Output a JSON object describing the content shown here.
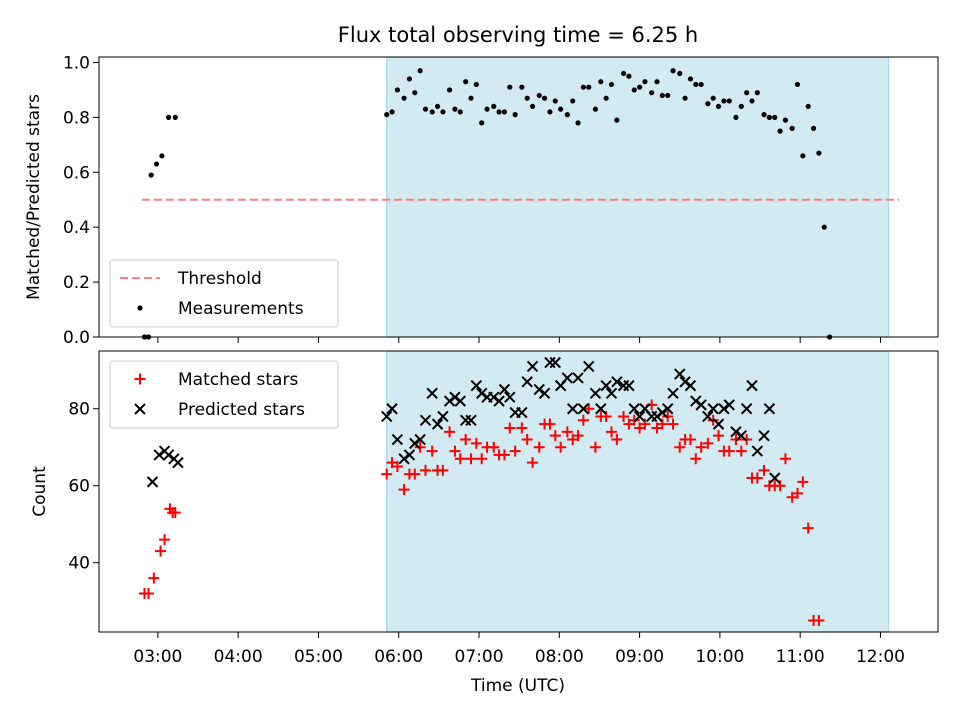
{
  "title": "Flux total observing time = 6.25 h",
  "xlabel": "Time (UTC)",
  "x_ticks": [
    "03:00",
    "04:00",
    "05:00",
    "06:00",
    "07:00",
    "08:00",
    "09:00",
    "10:00",
    "11:00",
    "12:00"
  ],
  "shaded_interval": {
    "start": "05:51",
    "end": "12:06",
    "color": "#add8e6"
  },
  "chart_data": [
    {
      "type": "scatter",
      "ylabel": "Matched/Predicted stars",
      "xlim": [
        "02:16",
        "12:43"
      ],
      "ylim": [
        0,
        1.02
      ],
      "y_ticks": [
        "0.0",
        "0.2",
        "0.4",
        "0.6",
        "0.8",
        "1.0"
      ],
      "legend_position": "lower-left",
      "threshold": {
        "name": "Threshold",
        "value": 0.5,
        "x_start": "02:48",
        "x_end": "12:14",
        "color": "#ff7f7f",
        "style": "dashed"
      },
      "series": [
        {
          "name": "Measurements",
          "color": "#000000",
          "marker": "dot",
          "points": [
            [
              "02:50",
              0.0
            ],
            [
              "02:53",
              0.0
            ],
            [
              "02:55",
              0.59
            ],
            [
              "02:59",
              0.63
            ],
            [
              "03:03",
              0.66
            ],
            [
              "03:08",
              0.8
            ],
            [
              "03:13",
              0.8
            ],
            [
              "05:51",
              0.81
            ],
            [
              "05:55",
              0.82
            ],
            [
              "05:59",
              0.9
            ],
            [
              "06:04",
              0.87
            ],
            [
              "06:08",
              0.94
            ],
            [
              "06:12",
              0.89
            ],
            [
              "06:16",
              0.97
            ],
            [
              "06:20",
              0.83
            ],
            [
              "06:25",
              0.82
            ],
            [
              "06:29",
              0.84
            ],
            [
              "06:33",
              0.82
            ],
            [
              "06:38",
              0.9
            ],
            [
              "06:42",
              0.83
            ],
            [
              "06:46",
              0.82
            ],
            [
              "06:50",
              0.93
            ],
            [
              "06:54",
              0.87
            ],
            [
              "06:58",
              0.92
            ],
            [
              "07:02",
              0.78
            ],
            [
              "07:06",
              0.83
            ],
            [
              "07:11",
              0.84
            ],
            [
              "07:15",
              0.82
            ],
            [
              "07:19",
              0.82
            ],
            [
              "07:23",
              0.91
            ],
            [
              "07:27",
              0.81
            ],
            [
              "07:32",
              0.91
            ],
            [
              "07:36",
              0.87
            ],
            [
              "07:40",
              0.84
            ],
            [
              "07:45",
              0.88
            ],
            [
              "07:49",
              0.87
            ],
            [
              "07:53",
              0.82
            ],
            [
              "07:57",
              0.86
            ],
            [
              "08:01",
              0.83
            ],
            [
              "08:06",
              0.81
            ],
            [
              "08:10",
              0.86
            ],
            [
              "08:14",
              0.78
            ],
            [
              "08:18",
              0.91
            ],
            [
              "08:22",
              0.91
            ],
            [
              "08:27",
              0.83
            ],
            [
              "08:31",
              0.93
            ],
            [
              "08:35",
              0.87
            ],
            [
              "08:39",
              0.92
            ],
            [
              "08:43",
              0.79
            ],
            [
              "08:48",
              0.96
            ],
            [
              "08:52",
              0.95
            ],
            [
              "08:56",
              0.9
            ],
            [
              "09:00",
              0.91
            ],
            [
              "09:04",
              0.93
            ],
            [
              "09:09",
              0.89
            ],
            [
              "09:13",
              0.93
            ],
            [
              "09:17",
              0.88
            ],
            [
              "09:21",
              0.88
            ],
            [
              "09:25",
              0.97
            ],
            [
              "09:30",
              0.96
            ],
            [
              "09:34",
              0.87
            ],
            [
              "09:38",
              0.94
            ],
            [
              "09:42",
              0.92
            ],
            [
              "09:46",
              0.92
            ],
            [
              "09:51",
              0.85
            ],
            [
              "09:55",
              0.87
            ],
            [
              "09:59",
              0.84
            ],
            [
              "10:03",
              0.86
            ],
            [
              "10:07",
              0.86
            ],
            [
              "10:12",
              0.8
            ],
            [
              "10:16",
              0.84
            ],
            [
              "10:20",
              0.89
            ],
            [
              "10:24",
              0.86
            ],
            [
              "10:28",
              0.89
            ],
            [
              "10:33",
              0.81
            ],
            [
              "10:37",
              0.8
            ],
            [
              "10:41",
              0.8
            ],
            [
              "10:45",
              0.75
            ],
            [
              "10:49",
              0.79
            ],
            [
              "10:54",
              0.76
            ],
            [
              "10:58",
              0.92
            ],
            [
              "11:02",
              0.66
            ],
            [
              "11:06",
              0.84
            ],
            [
              "11:10",
              0.76
            ],
            [
              "11:14",
              0.67
            ],
            [
              "11:18",
              0.4
            ],
            [
              "11:22",
              0.0
            ]
          ]
        }
      ]
    },
    {
      "type": "scatter",
      "ylabel": "Count",
      "xlim": [
        "02:16",
        "12:43"
      ],
      "ylim": [
        22,
        95
      ],
      "y_ticks": [
        "40",
        "60",
        "80"
      ],
      "legend_position": "top-left",
      "series": [
        {
          "name": "Matched stars",
          "color": "#ff0000",
          "marker": "plus",
          "points": [
            [
              "02:50",
              32
            ],
            [
              "02:53",
              32
            ],
            [
              "02:57",
              36
            ],
            [
              "03:02",
              43
            ],
            [
              "03:05",
              46
            ],
            [
              "03:09",
              54
            ],
            [
              "03:11",
              53
            ],
            [
              "03:13",
              53
            ],
            [
              "05:51",
              63
            ],
            [
              "05:55",
              66
            ],
            [
              "05:59",
              65
            ],
            [
              "06:04",
              59
            ],
            [
              "06:08",
              63
            ],
            [
              "06:12",
              63
            ],
            [
              "06:16",
              70
            ],
            [
              "06:20",
              64
            ],
            [
              "06:25",
              69
            ],
            [
              "06:29",
              64
            ],
            [
              "06:33",
              64
            ],
            [
              "06:38",
              74
            ],
            [
              "06:42",
              69
            ],
            [
              "06:46",
              67
            ],
            [
              "06:50",
              72
            ],
            [
              "06:54",
              67
            ],
            [
              "06:58",
              71
            ],
            [
              "07:02",
              67
            ],
            [
              "07:06",
              70
            ],
            [
              "07:11",
              70
            ],
            [
              "07:15",
              68
            ],
            [
              "07:19",
              68
            ],
            [
              "07:23",
              75
            ],
            [
              "07:27",
              69
            ],
            [
              "07:32",
              75
            ],
            [
              "07:36",
              72
            ],
            [
              "07:40",
              66
            ],
            [
              "07:45",
              70
            ],
            [
              "07:49",
              76
            ],
            [
              "07:53",
              76
            ],
            [
              "07:57",
              73
            ],
            [
              "08:01",
              70
            ],
            [
              "08:06",
              74
            ],
            [
              "08:10",
              72
            ],
            [
              "08:14",
              73
            ],
            [
              "08:18",
              77
            ],
            [
              "08:22",
              80
            ],
            [
              "08:27",
              70
            ],
            [
              "08:31",
              78
            ],
            [
              "08:35",
              78
            ],
            [
              "08:39",
              74
            ],
            [
              "08:43",
              72
            ],
            [
              "08:48",
              78
            ],
            [
              "08:52",
              76
            ],
            [
              "08:56",
              77
            ],
            [
              "09:00",
              75
            ],
            [
              "09:04",
              76
            ],
            [
              "09:09",
              81
            ],
            [
              "09:13",
              75
            ],
            [
              "09:17",
              76
            ],
            [
              "09:21",
              78
            ],
            [
              "09:25",
              76
            ],
            [
              "09:30",
              70
            ],
            [
              "09:34",
              72
            ],
            [
              "09:38",
              72
            ],
            [
              "09:42",
              67
            ],
            [
              "09:46",
              70
            ],
            [
              "09:51",
              71
            ],
            [
              "09:55",
              77
            ],
            [
              "09:59",
              73
            ],
            [
              "10:03",
              69
            ],
            [
              "10:07",
              69
            ],
            [
              "10:12",
              72
            ],
            [
              "10:16",
              69
            ],
            [
              "10:20",
              72
            ],
            [
              "10:24",
              62
            ],
            [
              "10:28",
              62
            ],
            [
              "10:33",
              64
            ],
            [
              "10:37",
              60
            ],
            [
              "10:41",
              60
            ],
            [
              "10:45",
              60
            ],
            [
              "10:49",
              67
            ],
            [
              "10:54",
              57
            ],
            [
              "10:58",
              58
            ],
            [
              "11:02",
              61
            ],
            [
              "11:06",
              49
            ],
            [
              "11:10",
              25
            ],
            [
              "11:14",
              25
            ]
          ]
        },
        {
          "name": "Predicted stars",
          "color": "#000000",
          "marker": "x",
          "points": [
            [
              "02:56",
              61
            ],
            [
              "03:01",
              68
            ],
            [
              "03:05",
              69
            ],
            [
              "03:08",
              68
            ],
            [
              "03:12",
              67
            ],
            [
              "03:15",
              66
            ],
            [
              "05:51",
              78
            ],
            [
              "05:55",
              80
            ],
            [
              "05:59",
              72
            ],
            [
              "06:04",
              67
            ],
            [
              "06:08",
              68
            ],
            [
              "06:12",
              71
            ],
            [
              "06:16",
              72
            ],
            [
              "06:20",
              77
            ],
            [
              "06:25",
              84
            ],
            [
              "06:29",
              76
            ],
            [
              "06:33",
              78
            ],
            [
              "06:38",
              82
            ],
            [
              "06:42",
              83
            ],
            [
              "06:46",
              82
            ],
            [
              "06:50",
              77
            ],
            [
              "06:54",
              77
            ],
            [
              "06:58",
              86
            ],
            [
              "07:02",
              84
            ],
            [
              "07:06",
              83
            ],
            [
              "07:11",
              83
            ],
            [
              "07:15",
              82
            ],
            [
              "07:19",
              85
            ],
            [
              "07:23",
              83
            ],
            [
              "07:27",
              79
            ],
            [
              "07:32",
              79
            ],
            [
              "07:36",
              87
            ],
            [
              "07:40",
              91
            ],
            [
              "07:45",
              85
            ],
            [
              "07:49",
              84
            ],
            [
              "07:53",
              92
            ],
            [
              "07:57",
              92
            ],
            [
              "08:01",
              86
            ],
            [
              "08:06",
              88
            ],
            [
              "08:10",
              80
            ],
            [
              "08:14",
              88
            ],
            [
              "08:18",
              80
            ],
            [
              "08:22",
              91
            ],
            [
              "08:27",
              84
            ],
            [
              "08:31",
              80
            ],
            [
              "08:35",
              86
            ],
            [
              "08:39",
              84
            ],
            [
              "08:43",
              87
            ],
            [
              "08:48",
              86
            ],
            [
              "08:52",
              86
            ],
            [
              "08:56",
              80
            ],
            [
              "09:00",
              78
            ],
            [
              "09:04",
              80
            ],
            [
              "09:09",
              78
            ],
            [
              "09:13",
              78
            ],
            [
              "09:17",
              79
            ],
            [
              "09:21",
              80
            ],
            [
              "09:25",
              84
            ],
            [
              "09:30",
              89
            ],
            [
              "09:34",
              87
            ],
            [
              "09:38",
              86
            ],
            [
              "09:42",
              82
            ],
            [
              "09:46",
              81
            ],
            [
              "09:51",
              78
            ],
            [
              "09:55",
              80
            ],
            [
              "09:59",
              76
            ],
            [
              "10:03",
              80
            ],
            [
              "10:07",
              81
            ],
            [
              "10:12",
              74
            ],
            [
              "10:16",
              73
            ],
            [
              "10:20",
              80
            ],
            [
              "10:24",
              86
            ],
            [
              "10:28",
              69
            ],
            [
              "10:33",
              73
            ],
            [
              "10:37",
              80
            ],
            [
              "10:41",
              62
            ]
          ]
        }
      ]
    }
  ]
}
